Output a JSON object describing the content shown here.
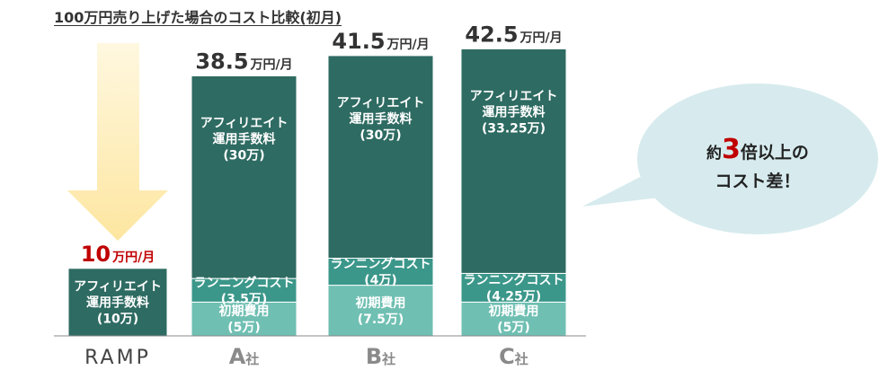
{
  "title": "100万円売り上げた場合のコスト比較(初月)",
  "colors": {
    "dark": "#2e6b62",
    "mid": "#3b978a",
    "light": "#6fbfb2",
    "accent_red": "#c00000",
    "total_text": "#333333",
    "arrow": "#fde9a5",
    "callout": "#d7ebee",
    "axis": "#8a8a8a"
  },
  "callout": {
    "line1_prefix": "約",
    "line1_number": "3",
    "line1_suffix": "倍以上の",
    "line2": "コスト差！"
  },
  "chart_data": {
    "type": "bar",
    "stacked": true,
    "unit": "万円/月",
    "categories": [
      {
        "label": "RAMP",
        "main": "RAMP",
        "sub": ""
      },
      {
        "label": "A社",
        "main": "A",
        "sub": "社"
      },
      {
        "label": "B社",
        "main": "B",
        "sub": "社"
      },
      {
        "label": "C社",
        "main": "C",
        "sub": "社"
      }
    ],
    "totals": [
      {
        "value": 10,
        "number": "10",
        "unit": "万円/月",
        "highlight": true
      },
      {
        "value": 38.5,
        "number": "38.5",
        "unit": "万円/月",
        "highlight": false
      },
      {
        "value": 41.5,
        "number": "41.5",
        "unit": "万円/月",
        "highlight": false
      },
      {
        "value": 42.5,
        "number": "42.5",
        "unit": "万円/月",
        "highlight": false
      }
    ],
    "segments": [
      [
        {
          "value": 10,
          "color": "dark",
          "lines": [
            "アフィリエイト",
            "運用手数料",
            "(10万)"
          ]
        }
      ],
      [
        {
          "value": 5,
          "color": "light",
          "lines": [
            "初期費用",
            "(5万)"
          ]
        },
        {
          "value": 3.5,
          "color": "mid",
          "lines": [
            "ランニングコスト",
            "(3.5万)"
          ]
        },
        {
          "value": 30,
          "color": "dark",
          "lines": [
            "アフィリエイト",
            "運用手数料",
            "(30万)"
          ]
        }
      ],
      [
        {
          "value": 7.5,
          "color": "light",
          "lines": [
            "初期費用",
            "(7.5万)"
          ]
        },
        {
          "value": 4,
          "color": "mid",
          "lines": [
            "ランニングコスト",
            "(4万)"
          ]
        },
        {
          "value": 30,
          "color": "dark",
          "lines": [
            "アフィリエイト",
            "運用手数料",
            "(30万)"
          ]
        }
      ],
      [
        {
          "value": 5,
          "color": "light",
          "lines": [
            "初期費用",
            "(5万)"
          ]
        },
        {
          "value": 4.25,
          "color": "mid",
          "lines": [
            "ランニングコスト",
            "(4.25万)"
          ]
        },
        {
          "value": 33.25,
          "color": "dark",
          "lines": [
            "アフィリエイト",
            "運用手数料",
            "(33.25万)"
          ]
        }
      ]
    ]
  }
}
